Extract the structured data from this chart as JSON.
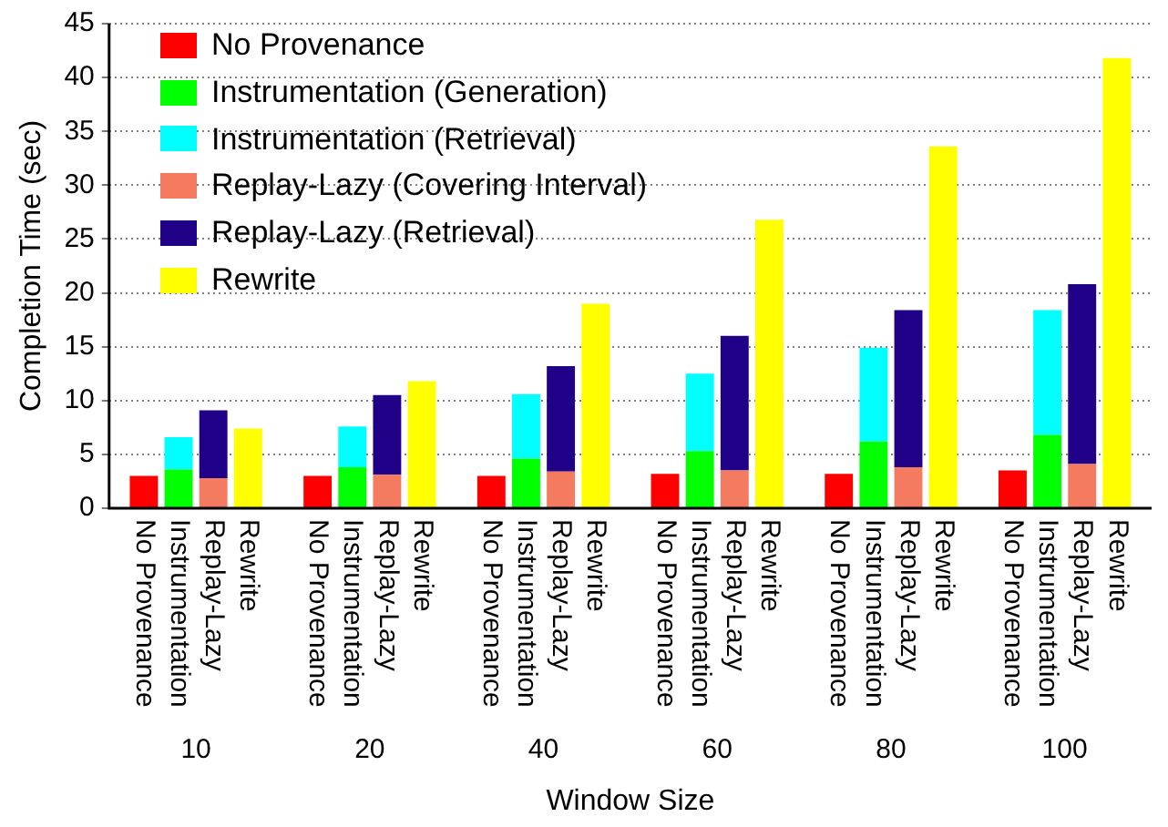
{
  "chart_data": {
    "type": "bar",
    "stacked": true,
    "xlabel": "Window Size",
    "ylabel": "Completion Time (sec)",
    "categories": [
      null,
      "No Provenance",
      "Instrumentation",
      "Replay-Lazy",
      "Rewrite",
      null,
      "No Provenance",
      "Instrumentation",
      "Replay-Lazy",
      "Rewrite",
      null,
      "No Provenance",
      "Instrumentation",
      "Replay-Lazy",
      "Rewrite",
      null,
      "No Provenance",
      "Instrumentation",
      "Replay-Lazy",
      "Rewrite",
      null,
      "No Provenance",
      "Instrumentation",
      "Replay-Lazy",
      "Rewrite",
      null,
      "No Provenance",
      "Instrumentation",
      "Replay-Lazy",
      "Rewrite",
      null
    ],
    "series": [
      {
        "name": "No Provenance",
        "color": "#ff0000",
        "values": [
          null,
          3.0,
          null,
          null,
          null,
          null,
          3.0,
          null,
          null,
          null,
          null,
          3.0,
          null,
          null,
          null,
          null,
          3.2,
          null,
          null,
          null,
          null,
          3.2,
          null,
          null,
          null,
          null,
          3.5,
          null,
          null,
          null,
          null
        ]
      },
      {
        "name": "Instrumentation (Generation)",
        "color": "#00ff00",
        "values": [
          null,
          null,
          3.6,
          null,
          null,
          null,
          null,
          3.8,
          null,
          null,
          null,
          null,
          4.6,
          null,
          null,
          null,
          null,
          5.3,
          null,
          null,
          null,
          null,
          6.2,
          null,
          null,
          null,
          null,
          6.8,
          null,
          null,
          null
        ]
      },
      {
        "name": "Instrumentation (Retrieval)",
        "color": "#00ffff",
        "values": [
          null,
          null,
          3.0,
          null,
          null,
          null,
          null,
          3.8,
          null,
          null,
          null,
          null,
          6.0,
          null,
          null,
          null,
          null,
          7.2,
          null,
          null,
          null,
          null,
          8.7,
          null,
          null,
          null,
          null,
          11.6,
          null,
          null,
          null
        ]
      },
      {
        "name": "Replay-Lazy (Covering Interval)",
        "color": "#f47a60",
        "values": [
          null,
          null,
          null,
          2.8,
          null,
          null,
          null,
          null,
          3.1,
          null,
          null,
          null,
          null,
          3.4,
          null,
          null,
          null,
          null,
          3.5,
          null,
          null,
          null,
          null,
          3.8,
          null,
          null,
          null,
          null,
          4.1,
          null,
          null
        ]
      },
      {
        "name": "Replay-Lazy (Retrieval)",
        "color": "#1f0087",
        "values": [
          null,
          null,
          null,
          6.3,
          null,
          null,
          null,
          null,
          7.4,
          null,
          null,
          null,
          null,
          9.8,
          null,
          null,
          null,
          null,
          12.5,
          null,
          null,
          null,
          null,
          14.6,
          null,
          null,
          null,
          null,
          16.7,
          null,
          null
        ]
      },
      {
        "name": "Rewrite",
        "color": "#ffff00",
        "values": [
          null,
          null,
          null,
          null,
          7.4,
          null,
          null,
          null,
          null,
          11.8,
          null,
          null,
          null,
          null,
          19.0,
          null,
          null,
          null,
          null,
          26.8,
          null,
          null,
          null,
          null,
          33.6,
          null,
          null,
          null,
          null,
          41.8,
          null
        ]
      }
    ],
    "ylim": [
      0,
      45
    ],
    "yticks": [
      0,
      5,
      10,
      15,
      20,
      25,
      30,
      35,
      40,
      45
    ],
    "grid": "y",
    "legend": "top left",
    "annotations": [
      "10",
      "20",
      "40",
      "60",
      "80",
      "100"
    ]
  }
}
